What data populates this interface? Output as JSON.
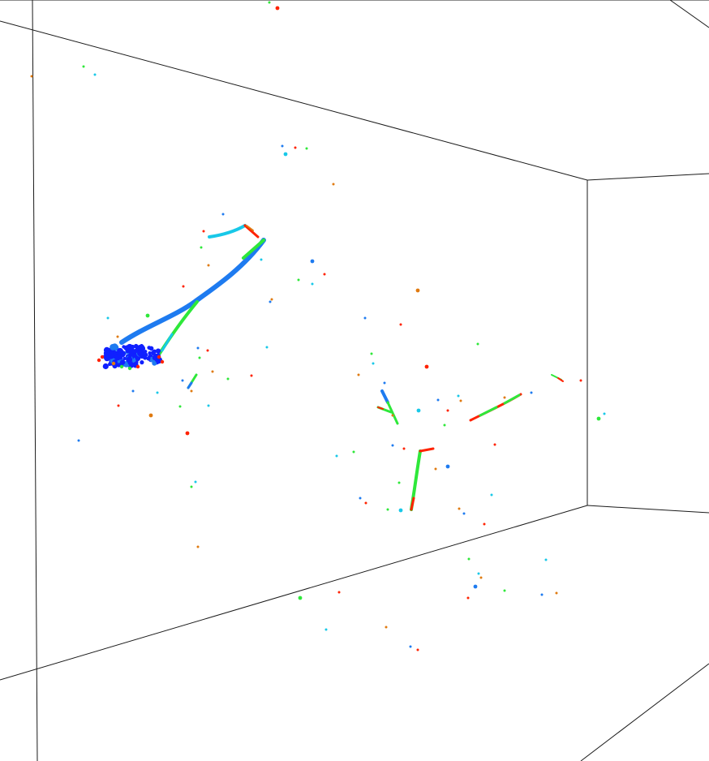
{
  "scene": {
    "kind": "3d-event-display",
    "background": "#ffffff",
    "edge_color": "#1a1a1a",
    "palette": {
      "low": "#1020ff",
      "mid_low": "#1e7bf0",
      "mid": "#18c8e8",
      "mid_high": "#2ee83a",
      "high": "#ff2200",
      "orange": "#e07a10"
    }
  }
}
